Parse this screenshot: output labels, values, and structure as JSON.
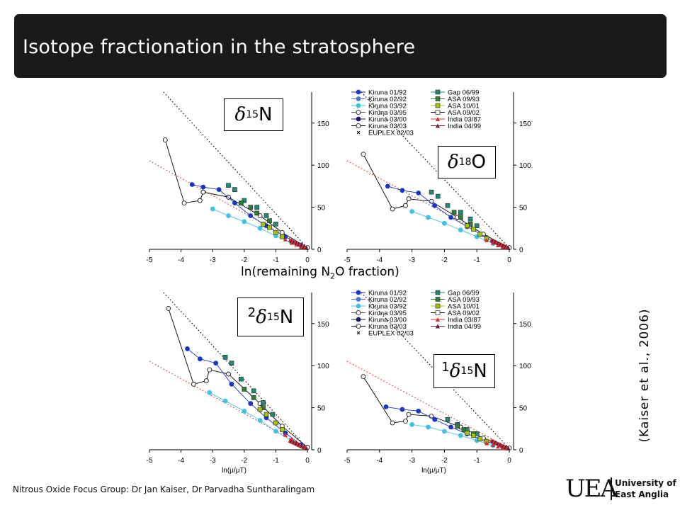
{
  "title": "Isotope fractionation in the stratosphere",
  "mid_label_main": "ln(remaining N",
  "mid_label_sub": "2",
  "mid_label_end": "O fraction)",
  "citation": "(Kaiser et al., 2006)",
  "footer": "Nitrous Oxide Focus Group: Dr Jan Kaiser, Dr Parvadha Suntharalingam",
  "logo": {
    "letters": "UEA",
    "line1": "University of",
    "line2": "East Anglia"
  },
  "panel_labels": [
    {
      "pre": "",
      "delta": "δ",
      "iso": "15",
      "el": "N"
    },
    {
      "pre": "",
      "delta": "δ",
      "iso": "18",
      "el": "O"
    },
    {
      "pre": "2",
      "delta": "δ",
      "iso": "15",
      "el": "N"
    },
    {
      "pre": "1",
      "delta": "δ",
      "iso": "15",
      "el": "N"
    }
  ],
  "legend": [
    {
      "name": "Kiruna 01/92",
      "color": "#1a35c8",
      "marker": "circle-filled"
    },
    {
      "name": "Kiruna 02/92",
      "color": "#4a78d8",
      "marker": "circle-filled"
    },
    {
      "name": "Kiruna 03/92",
      "color": "#3ec3e6",
      "marker": "circle-filled"
    },
    {
      "name": "Kiruna 03/95",
      "color": "#555555",
      "marker": "circle-open"
    },
    {
      "name": "Kiruna 03/00",
      "color": "#1a1a6e",
      "marker": "circle-filled"
    },
    {
      "name": "Kiruna 03/03",
      "color": "#000000",
      "marker": "circle-open"
    },
    {
      "name": "EUPLEX 02/03",
      "color": "#000000",
      "marker": "x"
    },
    {
      "name": "Gap 06/99",
      "color": "#1f8a7a",
      "marker": "square-filled"
    },
    {
      "name": "ASA 09/93",
      "color": "#2e7d32",
      "marker": "square-filled"
    },
    {
      "name": "ASA 10/01",
      "color": "#a5c400",
      "marker": "square-filled"
    },
    {
      "name": "ASA 09/02",
      "color": "#000000",
      "marker": "square-open"
    },
    {
      "name": "India 03/87",
      "color": "#d32f2f",
      "marker": "triangle-filled"
    },
    {
      "name": "India 04/99",
      "color": "#6a1b3a",
      "marker": "triangle-filled"
    }
  ],
  "chart_data": [
    {
      "type": "scatter",
      "title": "δ15N",
      "xlabel": "",
      "x_ticks": [
        -5,
        -4,
        -3,
        -2,
        -1,
        0
      ],
      "y_ticks": [
        0,
        50,
        100,
        150
      ],
      "xlim": [
        -5,
        0
      ],
      "ylim": [
        0,
        170
      ],
      "series": [
        {
          "name": "Kiruna 03/03",
          "marker": "circle-open",
          "color": "#000000",
          "x": [
            -4.5,
            -3.9,
            -3.4,
            -3.3,
            -2.5,
            -1.5,
            -0.8,
            0
          ],
          "y": [
            130,
            55,
            58,
            68,
            62,
            40,
            20,
            2
          ]
        },
        {
          "name": "Kiruna 01/92",
          "marker": "circle-filled",
          "color": "#1a35c8",
          "x": [
            -3.65,
            -3.3,
            -2.8,
            -2.3,
            -1.8,
            -1.3,
            -0.7,
            -0.2
          ],
          "y": [
            77,
            74,
            71,
            55,
            40,
            28,
            15,
            5
          ]
        },
        {
          "name": "Kiruna 03/92",
          "marker": "circle-filled",
          "color": "#3ec3e6",
          "x": [
            -3.0,
            -2.5,
            -2.0,
            -1.5,
            -1.0,
            -0.5
          ],
          "y": [
            48,
            40,
            33,
            25,
            16,
            8
          ]
        },
        {
          "name": "Gap 06/99",
          "marker": "square-filled",
          "color": "#1f8a7a",
          "x": [
            -2.5,
            -2.3,
            -2.0,
            -1.6,
            -1.3,
            -1.0
          ],
          "y": [
            76,
            71,
            58,
            50,
            40,
            30
          ]
        },
        {
          "name": "ASA 09/93",
          "marker": "square-filled",
          "color": "#2e7d32",
          "x": [
            -2.1,
            -1.8,
            -1.6,
            -1.2
          ],
          "y": [
            55,
            50,
            43,
            34
          ]
        },
        {
          "name": "ASA 10/01",
          "marker": "square-filled",
          "color": "#a5c400",
          "x": [
            -1.4,
            -1.2,
            -1.0,
            -0.8
          ],
          "y": [
            30,
            26,
            20,
            15
          ]
        },
        {
          "name": "India 03/87",
          "marker": "triangle-filled",
          "color": "#d32f2f",
          "x": [
            -0.7,
            -0.5,
            -0.35,
            -0.2
          ],
          "y": [
            12,
            8,
            6,
            3
          ]
        }
      ]
    },
    {
      "type": "scatter",
      "title": "δ18O",
      "xlabel": "",
      "x_ticks": [
        -5,
        -4,
        -3,
        -2,
        -1,
        0
      ],
      "y_ticks": [
        0,
        50,
        100,
        150
      ],
      "xlim": [
        -5,
        0
      ],
      "ylim": [
        0,
        170
      ],
      "series": [
        {
          "name": "Kiruna 03/03",
          "marker": "circle-open",
          "color": "#000000",
          "x": [
            -4.5,
            -3.6,
            -3.2,
            -3.1,
            -2.4,
            -1.6,
            -0.8,
            0
          ],
          "y": [
            113,
            48,
            52,
            60,
            57,
            38,
            18,
            2
          ]
        },
        {
          "name": "Kiruna 01/92",
          "marker": "circle-filled",
          "color": "#1a35c8",
          "x": [
            -3.75,
            -3.3,
            -2.8,
            -2.3,
            -1.8,
            -1.3,
            -0.7,
            -0.2
          ],
          "y": [
            75,
            70,
            67,
            52,
            38,
            27,
            14,
            4
          ]
        },
        {
          "name": "Kiruna 03/92",
          "marker": "circle-filled",
          "color": "#3ec3e6",
          "x": [
            -3.0,
            -2.5,
            -2.0,
            -1.5,
            -1.0,
            -0.5
          ],
          "y": [
            45,
            38,
            31,
            23,
            15,
            7
          ]
        },
        {
          "name": "Gap 06/99",
          "marker": "square-filled",
          "color": "#1f8a7a",
          "x": [
            -2.4,
            -2.2,
            -1.9,
            -1.5,
            -1.2,
            -1.0
          ],
          "y": [
            68,
            63,
            52,
            44,
            36,
            28
          ]
        },
        {
          "name": "ASA 09/93",
          "marker": "square-filled",
          "color": "#2e7d32",
          "x": [
            -1.7,
            -1.5,
            -1.2
          ],
          "y": [
            44,
            38,
            30
          ]
        },
        {
          "name": "ASA 10/01",
          "marker": "square-filled",
          "color": "#a5c400",
          "x": [
            -1.3,
            -1.1,
            -0.9,
            -0.7
          ],
          "y": [
            28,
            24,
            18,
            13
          ]
        },
        {
          "name": "India 03/87",
          "marker": "triangle-filled",
          "color": "#d32f2f",
          "x": [
            -0.7,
            -0.5,
            -0.35,
            -0.2
          ],
          "y": [
            11,
            8,
            5,
            3
          ]
        }
      ]
    },
    {
      "type": "scatter",
      "title": "2δ15N",
      "xlabel": "ln(μ/μT)",
      "x_ticks": [
        -5,
        -4,
        -3,
        -2,
        -1,
        0
      ],
      "y_ticks": [
        0,
        50,
        100,
        150
      ],
      "xlim": [
        -5,
        0
      ],
      "ylim": [
        0,
        170
      ],
      "series": [
        {
          "name": "Kiruna 03/03",
          "marker": "circle-open",
          "color": "#000000",
          "x": [
            -4.4,
            -3.6,
            -3.2,
            -3.1,
            -2.5,
            -1.5,
            -0.8,
            0
          ],
          "y": [
            168,
            78,
            82,
            95,
            90,
            55,
            28,
            3
          ]
        },
        {
          "name": "Kiruna 01/92",
          "marker": "circle-filled",
          "color": "#1a35c8",
          "x": [
            -3.8,
            -3.4,
            -2.9,
            -2.4,
            -1.8,
            -1.3,
            -0.7,
            -0.2
          ],
          "y": [
            120,
            108,
            103,
            78,
            55,
            38,
            20,
            6
          ]
        },
        {
          "name": "Kiruna 03/92",
          "marker": "circle-filled",
          "color": "#3ec3e6",
          "x": [
            -3.1,
            -2.6,
            -2.0,
            -1.5,
            -1.0,
            -0.5
          ],
          "y": [
            68,
            58,
            46,
            35,
            22,
            11
          ]
        },
        {
          "name": "Gap 06/99",
          "marker": "square-filled",
          "color": "#1f8a7a",
          "x": [
            -2.6,
            -2.4,
            -2.1,
            -1.7,
            -1.4,
            -1.1
          ],
          "y": [
            110,
            103,
            84,
            70,
            56,
            42
          ]
        },
        {
          "name": "ASA 09/93",
          "marker": "square-filled",
          "color": "#2e7d32",
          "x": [
            -2.0,
            -1.7,
            -1.4
          ],
          "y": [
            72,
            62,
            50
          ]
        },
        {
          "name": "ASA 10/01",
          "marker": "square-filled",
          "color": "#a5c400",
          "x": [
            -1.5,
            -1.3,
            -1.0,
            -0.8
          ],
          "y": [
            48,
            42,
            32,
            24
          ]
        },
        {
          "name": "India 03/87",
          "marker": "triangle-filled",
          "color": "#d32f2f",
          "x": [
            -0.7,
            -0.5,
            -0.35,
            -0.2
          ],
          "y": [
            18,
            13,
            9,
            5
          ]
        }
      ]
    },
    {
      "type": "scatter",
      "title": "1δ15N",
      "xlabel": "ln(μ/μT)",
      "x_ticks": [
        -5,
        -4,
        -3,
        -2,
        -1,
        0
      ],
      "y_ticks": [
        0,
        50,
        100,
        150
      ],
      "xlim": [
        -5,
        0
      ],
      "ylim": [
        0,
        170
      ],
      "series": [
        {
          "name": "Kiruna 03/03",
          "marker": "circle-open",
          "color": "#000000",
          "x": [
            -4.5,
            -3.6,
            -3.2,
            -3.1,
            -2.4,
            -1.5,
            -0.8,
            0
          ],
          "y": [
            87,
            32,
            34,
            42,
            40,
            27,
            14,
            2
          ]
        },
        {
          "name": "Kiruna 01/92",
          "marker": "circle-filled",
          "color": "#1a35c8",
          "x": [
            -3.8,
            -3.3,
            -2.8,
            -2.3,
            -1.8,
            -1.3,
            -0.7,
            -0.2
          ],
          "y": [
            51,
            48,
            46,
            36,
            27,
            19,
            10,
            3
          ]
        },
        {
          "name": "Kiruna 03/92",
          "marker": "circle-filled",
          "color": "#3ec3e6",
          "x": [
            -3.0,
            -2.5,
            -2.0,
            -1.5,
            -1.0,
            -0.5
          ],
          "y": [
            30,
            27,
            22,
            17,
            11,
            5
          ]
        },
        {
          "name": "Gap 06/99",
          "marker": "square-filled",
          "color": "#1f8a7a",
          "x": [
            -1.9,
            -1.6,
            -1.3,
            -1.0
          ],
          "y": [
            36,
            30,
            24,
            19
          ]
        },
        {
          "name": "ASA 09/93",
          "marker": "square-filled",
          "color": "#2e7d32",
          "x": [
            -1.6,
            -1.4,
            -1.1
          ],
          "y": [
            28,
            24,
            19
          ]
        },
        {
          "name": "ASA 10/01",
          "marker": "square-filled",
          "color": "#a5c400",
          "x": [
            -1.3,
            -1.1,
            -0.9,
            -0.7
          ],
          "y": [
            20,
            17,
            13,
            10
          ]
        },
        {
          "name": "India 03/87",
          "marker": "triangle-filled",
          "color": "#d32f2f",
          "x": [
            -0.7,
            -0.5,
            -0.35,
            -0.2
          ],
          "y": [
            8,
            6,
            4,
            2
          ]
        }
      ]
    }
  ]
}
